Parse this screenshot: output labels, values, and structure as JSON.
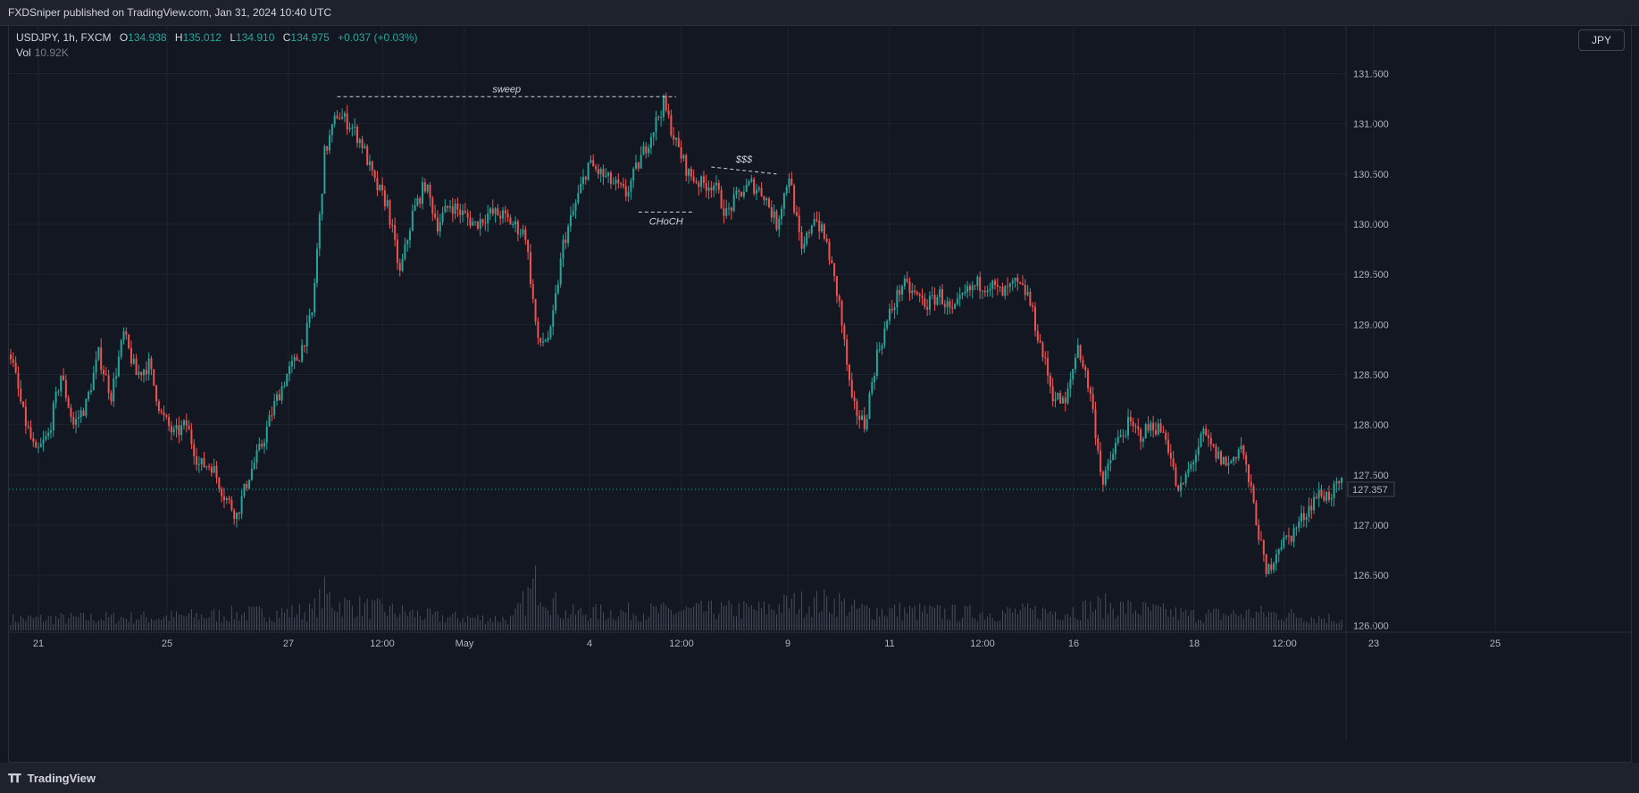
{
  "header": {
    "publisher_line": "FXDSniper published on TradingView.com, Jan 31, 2024 10:40 UTC"
  },
  "legend": {
    "symbol": "USDJPY, 1h, FXCM",
    "open_label": "O",
    "open": "134.938",
    "high_label": "H",
    "high": "135.012",
    "low_label": "L",
    "low": "134.910",
    "close_label": "C",
    "close": "134.975",
    "change": "+0.037 (+0.03%)",
    "vol_label": "Vol",
    "vol_value": "10.92K"
  },
  "currency_button": "JPY",
  "footer": {
    "brand": "TradingView",
    "brand_icon": "tradingview-logo-icon"
  },
  "colors": {
    "up": "#26a69a",
    "down": "#ef5350",
    "background": "#131722",
    "grid": "#1f2331",
    "axis_text": "#b2b5be",
    "volume": "#4a4e5a"
  },
  "chart_data": {
    "type": "candlestick",
    "symbol": "USDJPY",
    "timeframe": "1h",
    "ylim": [
      125.95,
      131.7
    ],
    "y_ticks": [
      "131.500",
      "131.000",
      "130.500",
      "130.000",
      "129.500",
      "129.000",
      "128.500",
      "128.000",
      "127.500",
      "127.000",
      "126.500",
      "126.000"
    ],
    "x_ticks": [
      "21",
      "25",
      "27",
      "12:00",
      "May",
      "4",
      "12:00",
      "9",
      "11",
      "12:00",
      "16",
      "18",
      "12:00",
      "23",
      "25"
    ],
    "last_price": "127.357",
    "close_path": [
      [
        0,
        128.7
      ],
      [
        5,
        128.1
      ],
      [
        10,
        127.7
      ],
      [
        15,
        127.9
      ],
      [
        20,
        128.5
      ],
      [
        25,
        128.0
      ],
      [
        30,
        128.2
      ],
      [
        35,
        128.7
      ],
      [
        40,
        128.3
      ],
      [
        45,
        128.9
      ],
      [
        50,
        128.5
      ],
      [
        55,
        128.6
      ],
      [
        60,
        128.1
      ],
      [
        65,
        127.9
      ],
      [
        70,
        128.0
      ],
      [
        75,
        127.6
      ],
      [
        80,
        127.6
      ],
      [
        85,
        127.3
      ],
      [
        90,
        127.1
      ],
      [
        95,
        127.5
      ],
      [
        100,
        127.8
      ],
      [
        105,
        128.2
      ],
      [
        110,
        128.5
      ],
      [
        115,
        128.7
      ],
      [
        120,
        129.1
      ],
      [
        125,
        130.7
      ],
      [
        130,
        131.1
      ],
      [
        135,
        131.0
      ],
      [
        140,
        130.8
      ],
      [
        145,
        130.4
      ],
      [
        150,
        130.2
      ],
      [
        155,
        129.5
      ],
      [
        160,
        130.1
      ],
      [
        165,
        130.4
      ],
      [
        170,
        130.0
      ],
      [
        175,
        130.2
      ],
      [
        180,
        130.1
      ],
      [
        185,
        130.0
      ],
      [
        190,
        130.1
      ],
      [
        195,
        130.1
      ],
      [
        200,
        130.0
      ],
      [
        205,
        129.9
      ],
      [
        210,
        128.8
      ],
      [
        215,
        128.9
      ],
      [
        220,
        129.8
      ],
      [
        225,
        130.2
      ],
      [
        230,
        130.6
      ],
      [
        235,
        130.5
      ],
      [
        240,
        130.4
      ],
      [
        245,
        130.3
      ],
      [
        250,
        130.6
      ],
      [
        255,
        130.9
      ],
      [
        260,
        131.2
      ],
      [
        265,
        130.8
      ],
      [
        270,
        130.5
      ],
      [
        275,
        130.4
      ],
      [
        280,
        130.4
      ],
      [
        285,
        130.1
      ],
      [
        290,
        130.3
      ],
      [
        295,
        130.4
      ],
      [
        300,
        130.3
      ],
      [
        305,
        130.0
      ],
      [
        310,
        130.5
      ],
      [
        315,
        129.7
      ],
      [
        320,
        130.1
      ],
      [
        325,
        129.8
      ],
      [
        330,
        129.2
      ],
      [
        335,
        128.2
      ],
      [
        340,
        128.0
      ],
      [
        345,
        128.7
      ],
      [
        350,
        129.1
      ],
      [
        355,
        129.4
      ],
      [
        360,
        129.3
      ],
      [
        365,
        129.2
      ],
      [
        370,
        129.3
      ],
      [
        375,
        129.1
      ],
      [
        380,
        129.3
      ],
      [
        385,
        129.4
      ],
      [
        390,
        129.4
      ],
      [
        395,
        129.3
      ],
      [
        400,
        129.4
      ],
      [
        405,
        129.3
      ],
      [
        410,
        128.8
      ],
      [
        415,
        128.3
      ],
      [
        420,
        128.2
      ],
      [
        425,
        128.8
      ],
      [
        430,
        128.3
      ],
      [
        435,
        127.4
      ],
      [
        440,
        127.8
      ],
      [
        445,
        128.0
      ],
      [
        450,
        127.9
      ],
      [
        455,
        128.0
      ],
      [
        460,
        127.9
      ],
      [
        465,
        127.3
      ],
      [
        470,
        127.6
      ],
      [
        475,
        127.9
      ],
      [
        480,
        127.7
      ],
      [
        485,
        127.6
      ],
      [
        490,
        127.8
      ],
      [
        495,
        127.2
      ],
      [
        500,
        126.5
      ],
      [
        505,
        126.8
      ],
      [
        510,
        126.9
      ],
      [
        515,
        127.1
      ],
      [
        520,
        127.3
      ],
      [
        525,
        127.3
      ],
      [
        530,
        127.4
      ]
    ],
    "volume_profile": [
      [
        0,
        0.3
      ],
      [
        60,
        0.35
      ],
      [
        120,
        0.5
      ],
      [
        125,
        0.95
      ],
      [
        130,
        0.7
      ],
      [
        170,
        0.35
      ],
      [
        200,
        0.3
      ],
      [
        210,
        1.3
      ],
      [
        215,
        0.85
      ],
      [
        220,
        0.45
      ],
      [
        300,
        0.55
      ],
      [
        310,
        0.7
      ],
      [
        330,
        0.75
      ],
      [
        335,
        0.55
      ],
      [
        380,
        0.45
      ],
      [
        420,
        0.5
      ],
      [
        435,
        0.65
      ],
      [
        470,
        0.4
      ],
      [
        500,
        0.45
      ],
      [
        530,
        0.3
      ]
    ],
    "annotations": [
      {
        "label": "sweep",
        "type": "dashed-level",
        "price": 131.27,
        "from": 130,
        "to": 265,
        "label_position": "above"
      },
      {
        "label": "$$$",
        "type": "dashed-trendline",
        "price_start": 130.57,
        "price_end": 130.5,
        "from": 279,
        "to": 305,
        "label_position": "above"
      },
      {
        "label": "CHoCH",
        "type": "dashed-level",
        "price": 130.12,
        "from": 250,
        "to": 272,
        "label_position": "below"
      }
    ]
  }
}
